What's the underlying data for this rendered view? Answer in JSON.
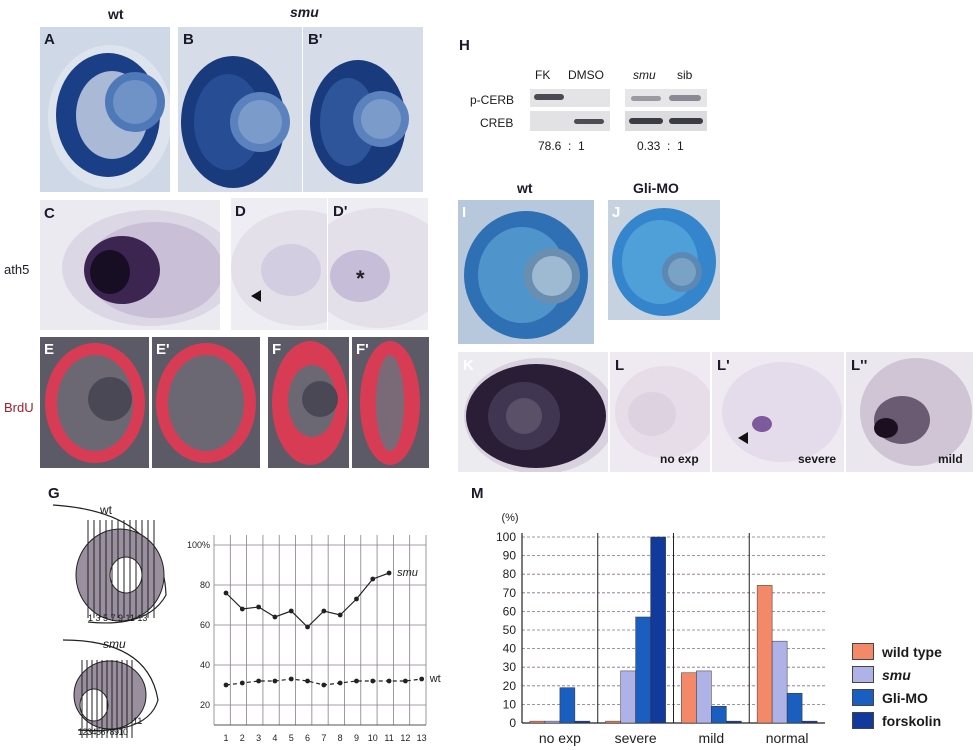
{
  "panels": {
    "A": "A",
    "B": "B",
    "B_prime": "B'",
    "C": "C",
    "D": "D",
    "D_prime": "D'",
    "E": "E",
    "E_prime": "E'",
    "F": "F",
    "F_prime": "F'",
    "G": "G",
    "H": "H",
    "I": "I",
    "J": "J",
    "K": "K",
    "L": "L",
    "L_prime": "L'",
    "L_dprime": "L''",
    "M": "M"
  },
  "headers": {
    "wt_top": "wt",
    "smu_top": "smu",
    "ath5": "ath5",
    "brdu": "BrdU",
    "wt_IJ": "wt",
    "gli_mo": "Gli-MO"
  },
  "blot": {
    "lanes_left": [
      "FK",
      "DMSO"
    ],
    "lanes_right": [
      "smu",
      "sib"
    ],
    "rows": [
      "p-CERB",
      "CREB"
    ],
    "ratio_left": "78.6  :  1",
    "ratio_right": "0.33  :  1"
  },
  "L_captions": {
    "L": "no exp",
    "L_prime": "severe",
    "L_dprime": "mild"
  },
  "G_schematic": {
    "wt": "wt",
    "wt_numbers": "1 3 5 7 9 11 13",
    "smu": "smu",
    "smu_numbers": "12345678910",
    "smu_extra": "11"
  },
  "chart_G": {
    "type": "line",
    "x": [
      1,
      2,
      3,
      4,
      5,
      6,
      7,
      8,
      9,
      10,
      11,
      12,
      13
    ],
    "xticks": [
      "1",
      "2",
      "3",
      "4",
      "5",
      "6",
      "7",
      "8",
      "9",
      "10",
      "11",
      "12",
      "13"
    ],
    "yticks": [
      {
        "v": 100,
        "label": "100%"
      },
      {
        "v": 80,
        "label": "80"
      },
      {
        "v": 60,
        "label": "60"
      },
      {
        "v": 40,
        "label": "40"
      },
      {
        "v": 20,
        "label": "20"
      }
    ],
    "ylim": [
      10,
      105
    ],
    "series": [
      {
        "name": "smu",
        "style": "solid",
        "x": [
          1,
          2,
          3,
          4,
          5,
          6,
          7,
          8,
          9,
          10,
          11
        ],
        "y": [
          76,
          68,
          69,
          64,
          67,
          59,
          67,
          65,
          73,
          83,
          86
        ]
      },
      {
        "name": "wt",
        "style": "dashed",
        "x": [
          1,
          2,
          3,
          4,
          5,
          6,
          7,
          8,
          9,
          10,
          11,
          12,
          13
        ],
        "y": [
          30,
          31,
          32,
          32,
          33,
          32,
          30,
          31,
          32,
          32,
          32,
          32,
          33
        ]
      }
    ]
  },
  "chart_data": {
    "type": "bar",
    "ylabel": "(%)",
    "categories": [
      "no exp",
      "severe",
      "mild",
      "normal"
    ],
    "yticks": [
      0,
      10,
      20,
      30,
      40,
      50,
      60,
      70,
      80,
      90,
      100
    ],
    "ylim": [
      0,
      100
    ],
    "series": [
      {
        "name": "wild type",
        "color": "#f4896a",
        "values": [
          1,
          1,
          27,
          74
        ]
      },
      {
        "name": "smu",
        "color": "#aeb2e6",
        "values": [
          1,
          28,
          28,
          44
        ]
      },
      {
        "name": "Gli-MO",
        "color": "#1a5fc0",
        "values": [
          19,
          57,
          9,
          16
        ]
      },
      {
        "name": "forskolin",
        "color": "#123a9c",
        "values": [
          1,
          100,
          1,
          1
        ]
      }
    ]
  }
}
